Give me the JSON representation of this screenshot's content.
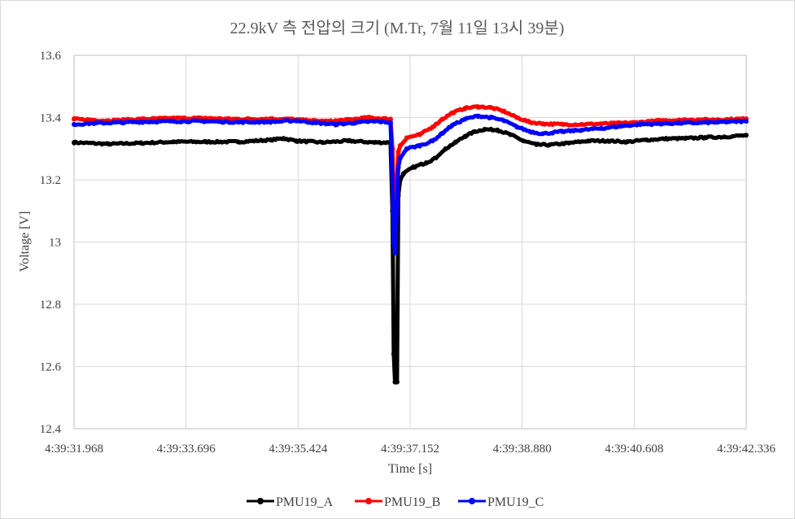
{
  "chart_data": {
    "type": "line",
    "title": "22.9kV 측 전압의 크기 (M.Tr, 7월 11일 13시 39분)",
    "xlabel": "Time [s]",
    "ylabel": "Voltage [V]",
    "ylim": [
      12.4,
      13.6
    ],
    "yticks": [
      "12.4",
      "12.6",
      "12.8",
      "13",
      "13.2",
      "13.4",
      "13.6"
    ],
    "xtick_labels": [
      "4:39:31.968",
      "4:39:33.696",
      "4:39:35.424",
      "4:39:37.152",
      "4:39:38.880",
      "4:39:40.608",
      "4:39:42.336"
    ],
    "xlim_seconds": [
      31.968,
      42.336
    ],
    "grid": true,
    "legend_position": "bottom",
    "series": [
      {
        "name": "PMU19_A",
        "color": "#000000",
        "points": [
          [
            31.968,
            13.32
          ],
          [
            32.5,
            13.315
          ],
          [
            33.0,
            13.318
          ],
          [
            33.5,
            13.322
          ],
          [
            34.0,
            13.322
          ],
          [
            34.5,
            13.322
          ],
          [
            35.0,
            13.328
          ],
          [
            35.2,
            13.333
          ],
          [
            35.4,
            13.325
          ],
          [
            35.8,
            13.32
          ],
          [
            36.2,
            13.325
          ],
          [
            36.6,
            13.32
          ],
          [
            36.85,
            13.32
          ],
          [
            36.88,
            13.1
          ],
          [
            36.9,
            12.64
          ],
          [
            36.92,
            12.55
          ],
          [
            36.95,
            12.55
          ],
          [
            36.97,
            13.15
          ],
          [
            37.0,
            13.2
          ],
          [
            37.05,
            13.22
          ],
          [
            37.2,
            13.24
          ],
          [
            37.4,
            13.255
          ],
          [
            37.55,
            13.27
          ],
          [
            37.7,
            13.3
          ],
          [
            37.85,
            13.32
          ],
          [
            38.0,
            13.34
          ],
          [
            38.15,
            13.355
          ],
          [
            38.3,
            13.362
          ],
          [
            38.5,
            13.36
          ],
          [
            38.7,
            13.345
          ],
          [
            38.9,
            13.325
          ],
          [
            39.1,
            13.313
          ],
          [
            39.3,
            13.312
          ],
          [
            39.6,
            13.318
          ],
          [
            39.9,
            13.325
          ],
          [
            40.2,
            13.325
          ],
          [
            40.5,
            13.322
          ],
          [
            40.8,
            13.328
          ],
          [
            41.1,
            13.332
          ],
          [
            41.4,
            13.333
          ],
          [
            41.7,
            13.336
          ],
          [
            42.0,
            13.338
          ],
          [
            42.336,
            13.343
          ]
        ]
      },
      {
        "name": "PMU19_B",
        "color": "#ff0000",
        "points": [
          [
            31.968,
            13.395
          ],
          [
            32.5,
            13.39
          ],
          [
            33.0,
            13.395
          ],
          [
            33.5,
            13.398
          ],
          [
            34.0,
            13.398
          ],
          [
            34.5,
            13.395
          ],
          [
            35.0,
            13.396
          ],
          [
            35.3,
            13.395
          ],
          [
            35.6,
            13.39
          ],
          [
            35.9,
            13.388
          ],
          [
            36.2,
            13.393
          ],
          [
            36.5,
            13.4
          ],
          [
            36.85,
            13.395
          ],
          [
            36.88,
            13.3
          ],
          [
            36.9,
            13.15
          ],
          [
            36.92,
            13.05
          ],
          [
            36.95,
            13.2
          ],
          [
            36.97,
            13.29
          ],
          [
            37.0,
            13.31
          ],
          [
            37.1,
            13.335
          ],
          [
            37.3,
            13.345
          ],
          [
            37.5,
            13.37
          ],
          [
            37.65,
            13.395
          ],
          [
            37.8,
            13.415
          ],
          [
            38.0,
            13.43
          ],
          [
            38.2,
            13.435
          ],
          [
            38.4,
            13.432
          ],
          [
            38.6,
            13.42
          ],
          [
            38.8,
            13.4
          ],
          [
            39.0,
            13.385
          ],
          [
            39.2,
            13.38
          ],
          [
            39.5,
            13.378
          ],
          [
            39.8,
            13.378
          ],
          [
            40.1,
            13.38
          ],
          [
            40.4,
            13.382
          ],
          [
            40.7,
            13.385
          ],
          [
            41.0,
            13.39
          ],
          [
            41.3,
            13.392
          ],
          [
            41.6,
            13.393
          ],
          [
            41.9,
            13.393
          ],
          [
            42.336,
            13.396
          ]
        ]
      },
      {
        "name": "PMU19_C",
        "color": "#0000ff",
        "points": [
          [
            31.968,
            13.378
          ],
          [
            32.3,
            13.382
          ],
          [
            32.7,
            13.384
          ],
          [
            33.0,
            13.386
          ],
          [
            33.5,
            13.388
          ],
          [
            34.0,
            13.388
          ],
          [
            34.5,
            13.385
          ],
          [
            35.0,
            13.386
          ],
          [
            35.4,
            13.39
          ],
          [
            35.7,
            13.383
          ],
          [
            36.0,
            13.378
          ],
          [
            36.3,
            13.383
          ],
          [
            36.6,
            13.388
          ],
          [
            36.85,
            13.384
          ],
          [
            36.88,
            13.2
          ],
          [
            36.9,
            13.0
          ],
          [
            36.92,
            12.965
          ],
          [
            36.95,
            13.12
          ],
          [
            36.97,
            13.24
          ],
          [
            37.0,
            13.27
          ],
          [
            37.1,
            13.3
          ],
          [
            37.3,
            13.31
          ],
          [
            37.5,
            13.325
          ],
          [
            37.65,
            13.35
          ],
          [
            37.8,
            13.375
          ],
          [
            38.0,
            13.395
          ],
          [
            38.2,
            13.405
          ],
          [
            38.4,
            13.4
          ],
          [
            38.6,
            13.39
          ],
          [
            38.8,
            13.37
          ],
          [
            39.0,
            13.355
          ],
          [
            39.2,
            13.348
          ],
          [
            39.5,
            13.355
          ],
          [
            39.8,
            13.36
          ],
          [
            40.1,
            13.365
          ],
          [
            40.4,
            13.372
          ],
          [
            40.7,
            13.378
          ],
          [
            41.0,
            13.38
          ],
          [
            41.3,
            13.382
          ],
          [
            41.6,
            13.383
          ],
          [
            41.9,
            13.385
          ],
          [
            42.336,
            13.388
          ]
        ]
      }
    ]
  }
}
